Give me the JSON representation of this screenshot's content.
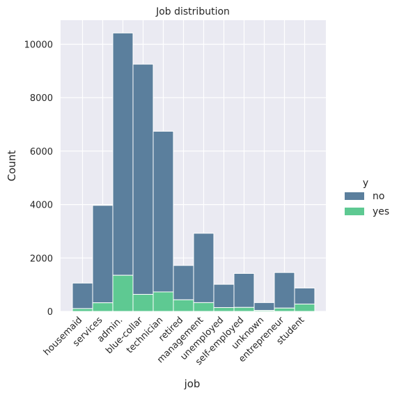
{
  "chart_data": {
    "type": "bar",
    "title": "Job distribution",
    "xlabel": "job",
    "ylabel": "Count",
    "ylim": [
      0,
      10900
    ],
    "yticks": [
      0,
      2000,
      4000,
      6000,
      8000,
      10000
    ],
    "ytick_labels": [
      "0",
      "2000",
      "4000",
      "6000",
      "8000",
      "10000"
    ],
    "stacked": true,
    "grid": true,
    "legend_position": "right",
    "categories": [
      "housemaid",
      "services",
      "admin.",
      "blue-collar",
      "technician",
      "retired",
      "management",
      "unemployed",
      "self-employed",
      "unknown",
      "entrepreneur",
      "student"
    ],
    "series": [
      {
        "name": "no",
        "color": "#5b7f9d",
        "values": [
          954,
          3646,
          9070,
          8616,
          6013,
          1286,
          2596,
          870,
          1272,
          293,
          1332,
          600
        ]
      },
      {
        "name": "yes",
        "color": "#5ec992",
        "values": [
          106,
          323,
          1352,
          638,
          730,
          434,
          328,
          144,
          149,
          37,
          124,
          275
        ]
      }
    ],
    "legend_title": "y"
  }
}
